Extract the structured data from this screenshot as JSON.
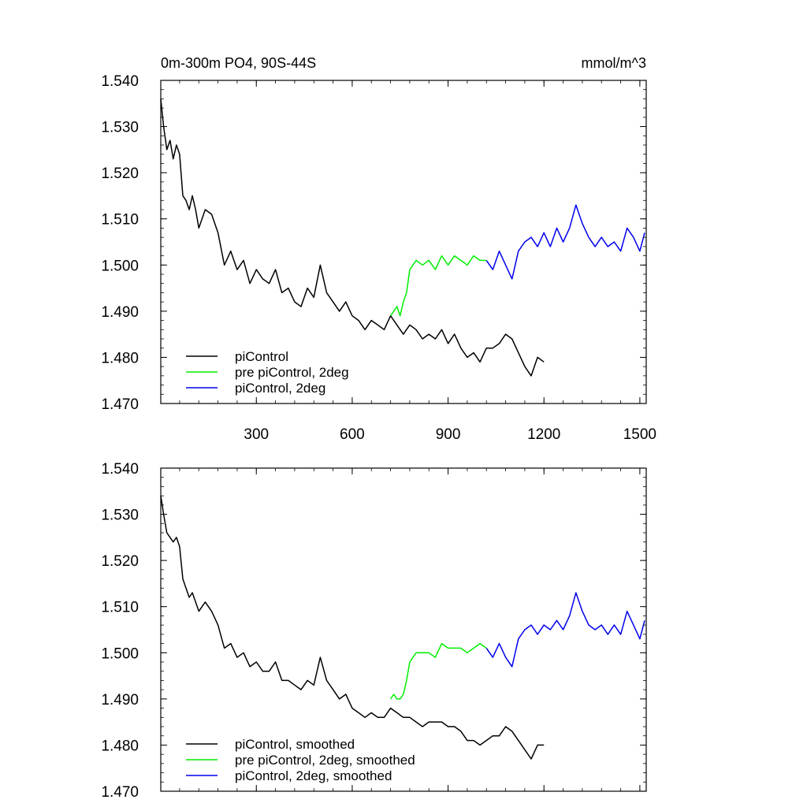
{
  "chart_data": [
    {
      "type": "line",
      "title": "0m-300m PO4, 90S-44S",
      "units": "mmol/m^3",
      "xlim": [
        1,
        1520
      ],
      "ylim": [
        1.47,
        1.54
      ],
      "xticks": [
        300,
        600,
        900,
        1200,
        1500
      ],
      "xtick_labels": [
        "300",
        "600",
        "900",
        "1200",
        "1500"
      ],
      "yticks": [
        1.47,
        1.48,
        1.49,
        1.5,
        1.51,
        1.52,
        1.53,
        1.54
      ],
      "ytick_labels": [
        "1.470",
        "1.480",
        "1.490",
        "1.500",
        "1.510",
        "1.520",
        "1.530",
        "1.540"
      ],
      "grid": false,
      "legend_position": "bottom-left",
      "series": [
        {
          "name": "piControl",
          "color": "#000000",
          "x": [
            1,
            10,
            20,
            30,
            40,
            50,
            60,
            70,
            80,
            90,
            100,
            110,
            120,
            140,
            160,
            180,
            200,
            220,
            240,
            260,
            280,
            300,
            320,
            340,
            360,
            380,
            400,
            420,
            440,
            460,
            480,
            500,
            520,
            540,
            560,
            580,
            600,
            620,
            640,
            660,
            680,
            700,
            720,
            740,
            760,
            780,
            800,
            820,
            840,
            860,
            880,
            900,
            920,
            940,
            960,
            980,
            1000,
            1020,
            1040,
            1060,
            1080,
            1100,
            1120,
            1140,
            1160,
            1180,
            1200
          ],
          "y": [
            1.536,
            1.53,
            1.525,
            1.527,
            1.523,
            1.526,
            1.524,
            1.515,
            1.514,
            1.512,
            1.515,
            1.512,
            1.508,
            1.512,
            1.511,
            1.507,
            1.5,
            1.503,
            1.499,
            1.501,
            1.496,
            1.499,
            1.497,
            1.496,
            1.499,
            1.494,
            1.495,
            1.492,
            1.491,
            1.495,
            1.493,
            1.5,
            1.494,
            1.492,
            1.49,
            1.492,
            1.489,
            1.488,
            1.486,
            1.488,
            1.487,
            1.486,
            1.489,
            1.487,
            1.485,
            1.487,
            1.486,
            1.484,
            1.485,
            1.484,
            1.486,
            1.483,
            1.485,
            1.482,
            1.48,
            1.481,
            1.479,
            1.482,
            1.482,
            1.483,
            1.485,
            1.484,
            1.481,
            1.478,
            1.476,
            1.48,
            1.479
          ]
        },
        {
          "name": "pre piControl, 2deg",
          "color": "#00ee00",
          "x": [
            720,
            730,
            740,
            750,
            760,
            770,
            780,
            790,
            800,
            820,
            840,
            860,
            880,
            900,
            920,
            940,
            960,
            980,
            1000,
            1020
          ],
          "y": [
            1.489,
            1.49,
            1.491,
            1.489,
            1.492,
            1.494,
            1.499,
            1.5,
            1.501,
            1.5,
            1.501,
            1.499,
            1.502,
            1.5,
            1.502,
            1.501,
            1.5,
            1.502,
            1.501,
            1.501
          ]
        },
        {
          "name": "piControl, 2deg",
          "color": "#0000ee",
          "x": [
            1020,
            1040,
            1060,
            1080,
            1100,
            1120,
            1140,
            1160,
            1180,
            1200,
            1220,
            1240,
            1260,
            1280,
            1300,
            1320,
            1340,
            1360,
            1380,
            1400,
            1420,
            1440,
            1460,
            1480,
            1500,
            1515
          ],
          "y": [
            1.501,
            1.499,
            1.503,
            1.5,
            1.497,
            1.503,
            1.505,
            1.506,
            1.504,
            1.507,
            1.504,
            1.508,
            1.505,
            1.508,
            1.513,
            1.509,
            1.506,
            1.504,
            1.506,
            1.504,
            1.505,
            1.503,
            1.508,
            1.506,
            1.503,
            1.507
          ]
        }
      ]
    },
    {
      "type": "line",
      "title": "",
      "xlim": [
        1,
        1520
      ],
      "ylim": [
        1.47,
        1.54
      ],
      "xticks": [
        300,
        600,
        900,
        1200,
        1500
      ],
      "yticks": [
        1.47,
        1.48,
        1.49,
        1.5,
        1.51,
        1.52,
        1.53,
        1.54
      ],
      "ytick_labels": [
        "1.470",
        "1.480",
        "1.490",
        "1.500",
        "1.510",
        "1.520",
        "1.530",
        "1.540"
      ],
      "grid": false,
      "legend_position": "bottom-left",
      "series": [
        {
          "name": "piControl, smoothed",
          "color": "#000000",
          "x": [
            1,
            10,
            20,
            30,
            40,
            50,
            60,
            70,
            80,
            90,
            100,
            110,
            120,
            140,
            160,
            180,
            200,
            220,
            240,
            260,
            280,
            300,
            320,
            340,
            360,
            380,
            400,
            420,
            440,
            460,
            480,
            500,
            520,
            540,
            560,
            580,
            600,
            620,
            640,
            660,
            680,
            700,
            720,
            740,
            760,
            780,
            800,
            820,
            840,
            860,
            880,
            900,
            920,
            940,
            960,
            980,
            1000,
            1020,
            1040,
            1060,
            1080,
            1100,
            1120,
            1140,
            1160,
            1180,
            1200
          ],
          "y": [
            1.534,
            1.53,
            1.526,
            1.525,
            1.524,
            1.525,
            1.523,
            1.516,
            1.514,
            1.512,
            1.513,
            1.511,
            1.509,
            1.511,
            1.509,
            1.506,
            1.501,
            1.502,
            1.499,
            1.5,
            1.497,
            1.498,
            1.496,
            1.496,
            1.498,
            1.494,
            1.494,
            1.493,
            1.492,
            1.494,
            1.493,
            1.499,
            1.494,
            1.492,
            1.49,
            1.491,
            1.488,
            1.487,
            1.486,
            1.487,
            1.486,
            1.486,
            1.488,
            1.487,
            1.486,
            1.486,
            1.485,
            1.484,
            1.485,
            1.485,
            1.485,
            1.484,
            1.484,
            1.483,
            1.481,
            1.481,
            1.48,
            1.481,
            1.482,
            1.482,
            1.484,
            1.483,
            1.481,
            1.479,
            1.477,
            1.48,
            1.48
          ]
        },
        {
          "name": "pre piControl, 2deg, smoothed",
          "color": "#00ee00",
          "x": [
            720,
            730,
            740,
            750,
            760,
            770,
            780,
            790,
            800,
            820,
            840,
            860,
            880,
            900,
            920,
            940,
            960,
            980,
            1000,
            1020
          ],
          "y": [
            1.49,
            1.491,
            1.49,
            1.49,
            1.491,
            1.494,
            1.498,
            1.499,
            1.5,
            1.5,
            1.5,
            1.499,
            1.502,
            1.501,
            1.501,
            1.501,
            1.5,
            1.501,
            1.502,
            1.501
          ]
        },
        {
          "name": "piControl, 2deg, smoothed",
          "color": "#0000ee",
          "x": [
            1020,
            1040,
            1060,
            1080,
            1100,
            1120,
            1140,
            1160,
            1180,
            1200,
            1220,
            1240,
            1260,
            1280,
            1300,
            1320,
            1340,
            1360,
            1380,
            1400,
            1420,
            1440,
            1460,
            1480,
            1500,
            1515
          ],
          "y": [
            1.501,
            1.499,
            1.502,
            1.499,
            1.497,
            1.503,
            1.505,
            1.506,
            1.504,
            1.506,
            1.505,
            1.507,
            1.505,
            1.508,
            1.513,
            1.509,
            1.506,
            1.505,
            1.506,
            1.504,
            1.506,
            1.504,
            1.509,
            1.506,
            1.503,
            1.507
          ]
        }
      ]
    }
  ]
}
